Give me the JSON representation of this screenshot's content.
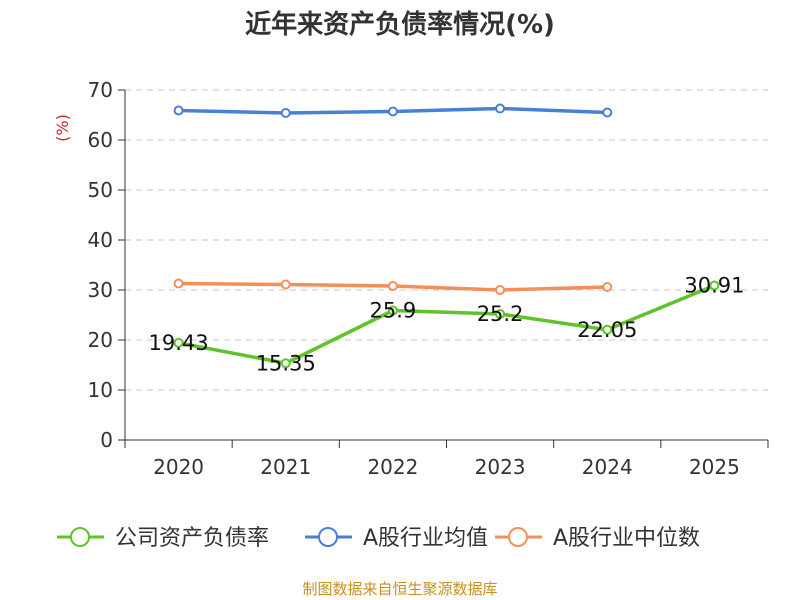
{
  "chart_data": {
    "type": "line",
    "title": "近年来资产负债率情况(%)",
    "ylabel": "(%)",
    "xlabel": "",
    "categories": [
      "2020",
      "2021",
      "2022",
      "2023",
      "2024",
      "2025"
    ],
    "ylim": [
      0,
      70
    ],
    "yticks": [
      0,
      10,
      20,
      30,
      40,
      50,
      60,
      70
    ],
    "grid": true,
    "legend_position": "bottom",
    "series": [
      {
        "name": "公司资产负债率",
        "color": "#5fc329",
        "values": [
          19.43,
          15.35,
          25.9,
          25.2,
          22.05,
          30.91
        ],
        "labels": [
          "19.43",
          "15.35",
          "25.9",
          "25.2",
          "22.05",
          "30.91"
        ]
      },
      {
        "name": "A股行业均值",
        "color": "#4a7fd8",
        "values": [
          65.9,
          65.4,
          65.7,
          66.3,
          65.5,
          null
        ]
      },
      {
        "name": "A股行业中位数",
        "color": "#f58f5a",
        "values": [
          31.3,
          31.1,
          30.8,
          30.0,
          30.6,
          null
        ]
      }
    ]
  },
  "footer": {
    "source": "制图数据来自恒生聚源数据库"
  }
}
